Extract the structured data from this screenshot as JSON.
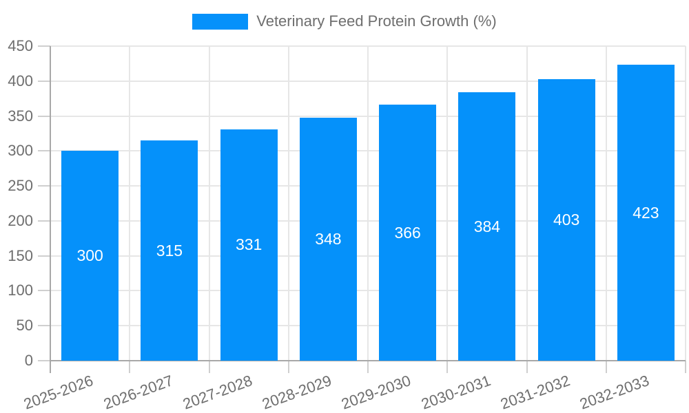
{
  "chart_data": {
    "type": "bar",
    "title": "",
    "legend_label": "Veterinary Feed Protein Growth (%)",
    "legend_position": "top",
    "xlabel": "",
    "ylabel": "",
    "categories": [
      "2025-2026",
      "2026-2027",
      "2027-2028",
      "2028-2029",
      "2029-2030",
      "2030-2031",
      "2031-2032",
      "2032-2033"
    ],
    "values": [
      300,
      315,
      331,
      348,
      366,
      384,
      403,
      423
    ],
    "ylim": [
      0,
      450
    ],
    "ytick_step": 50,
    "yticks": [
      0,
      50,
      100,
      150,
      200,
      250,
      300,
      350,
      400,
      450
    ],
    "grid": true,
    "value_labels": "inside-center",
    "xtick_rotation_deg": -20,
    "colors": {
      "bar": "#0591fa",
      "grid_line": "#e6e6e6",
      "tick_mark": "#cfcfcf",
      "axis_line": "#a8a8a8",
      "tick_text": "#6e6e6e",
      "value_label_text": "#ffffff",
      "background": "#ffffff"
    }
  }
}
